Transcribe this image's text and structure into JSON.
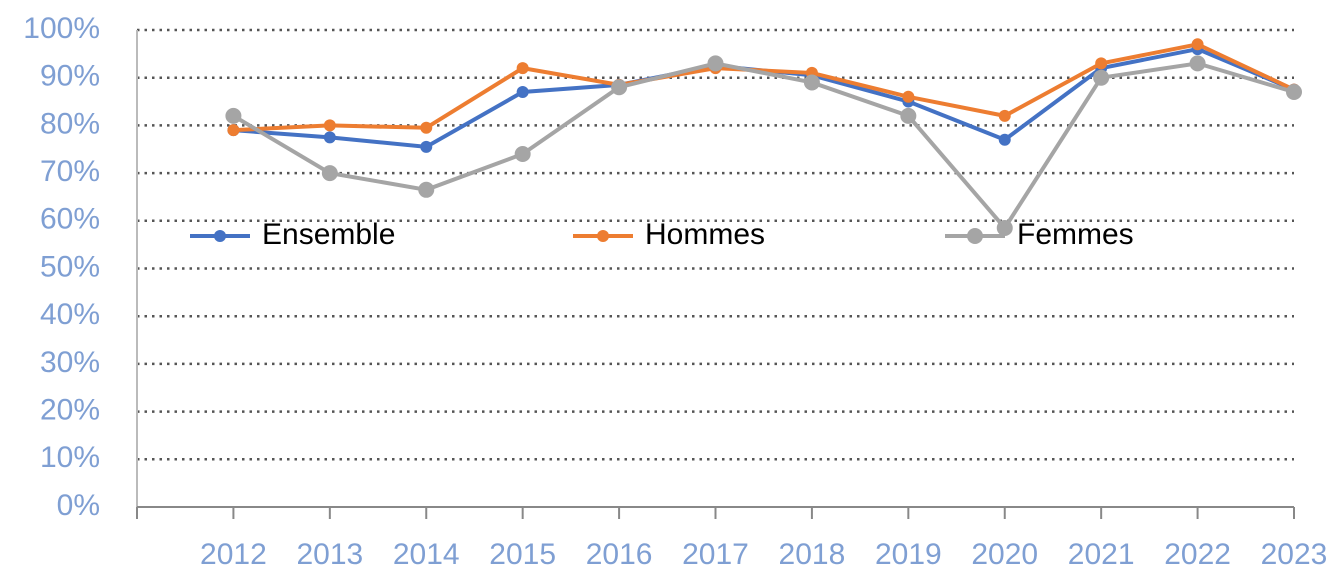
{
  "chart_data": {
    "type": "line",
    "categories": [
      "2012",
      "2013",
      "2014",
      "2015",
      "2016",
      "2017",
      "2018",
      "2019",
      "2020",
      "2021",
      "2022",
      "2023"
    ],
    "series": [
      {
        "name": "Ensemble",
        "color": "#4472c4",
        "values": [
          79,
          77.5,
          75.5,
          87,
          88.5,
          92.5,
          90.5,
          85,
          77,
          92,
          96,
          87.5
        ]
      },
      {
        "name": "Hommes",
        "color": "#ed7d31",
        "values": [
          79,
          80,
          79.5,
          92,
          88.5,
          92,
          91,
          86,
          82,
          93,
          97,
          87.5
        ]
      },
      {
        "name": "Femmes",
        "color": "#a5a5a5",
        "values": [
          82,
          70,
          66.5,
          74,
          88,
          93,
          89,
          82,
          58.5,
          90,
          93,
          87
        ]
      }
    ],
    "ylim": [
      0,
      100
    ],
    "yticks": [
      {
        "value": 0,
        "label": "0%"
      },
      {
        "value": 10,
        "label": "10%"
      },
      {
        "value": 20,
        "label": "20%"
      },
      {
        "value": 30,
        "label": "30%"
      },
      {
        "value": 40,
        "label": "40%"
      },
      {
        "value": 50,
        "label": "50%"
      },
      {
        "value": 60,
        "label": "60%"
      },
      {
        "value": 70,
        "label": "70%"
      },
      {
        "value": 80,
        "label": "80%"
      },
      {
        "value": 90,
        "label": "90%"
      },
      {
        "value": 100,
        "label": "100%"
      }
    ],
    "grid": true
  }
}
